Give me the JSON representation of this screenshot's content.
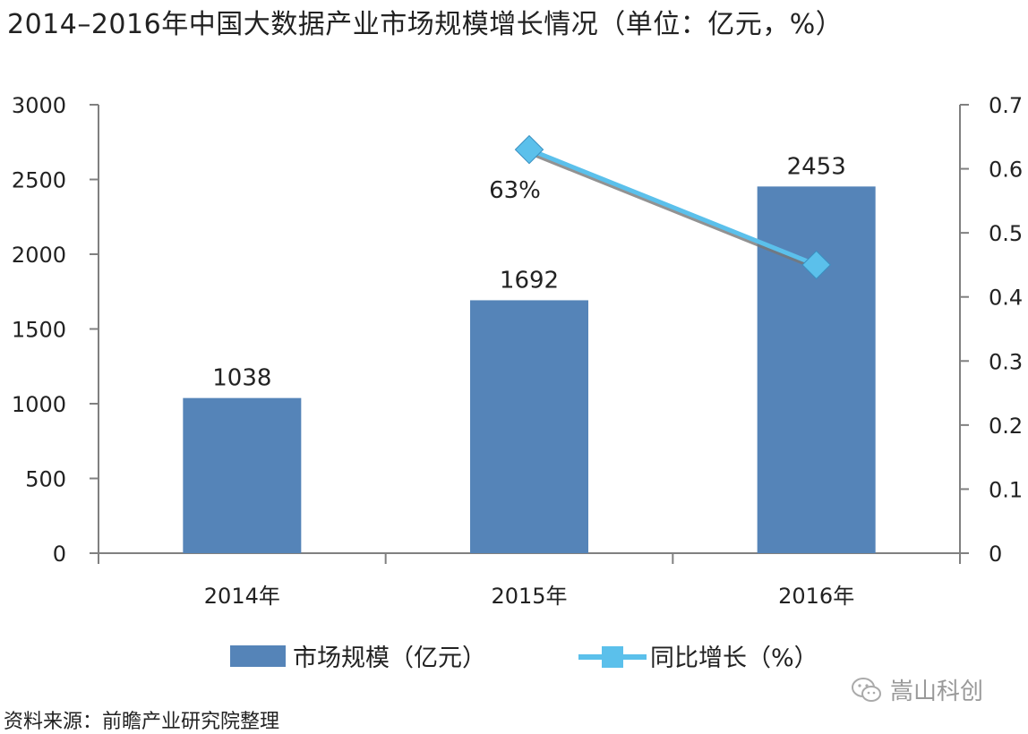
{
  "chart_data": {
    "type": "bar+line",
    "title": "2014–2016年中国大数据产业市场规模增长情况（单位：亿元，%）",
    "categories": [
      "2014年",
      "2015年",
      "2016年"
    ],
    "series": [
      {
        "name": "市场规模（亿元）",
        "type": "bar",
        "axis": "left",
        "values": [
          1038,
          1692,
          2453
        ],
        "labels": [
          "1038",
          "1692",
          "2453"
        ],
        "color": "#5584b8"
      },
      {
        "name": "同比增长（%）",
        "type": "line",
        "axis": "right",
        "x": [
          "2015年",
          "2016年"
        ],
        "values": [
          0.63,
          0.45
        ],
        "labels": [
          "63%",
          ""
        ],
        "color": "#5bc0eb"
      }
    ],
    "y_left": {
      "ylim": [
        0,
        3000
      ],
      "ticks": [
        "0",
        "500",
        "1000",
        "1500",
        "2000",
        "2500",
        "3000"
      ]
    },
    "y_right": {
      "ylim": [
        0,
        0.7
      ],
      "ticks": [
        "0",
        "0.1",
        "0.2",
        "0.3",
        "0.4",
        "0.5",
        "0.6",
        "0.7"
      ]
    },
    "grid": false,
    "legend": "bottom"
  },
  "source": "资料来源：前瞻产业研究院整理",
  "watermark": {
    "icon": "wechat-icon",
    "text": "嵩山科创"
  }
}
